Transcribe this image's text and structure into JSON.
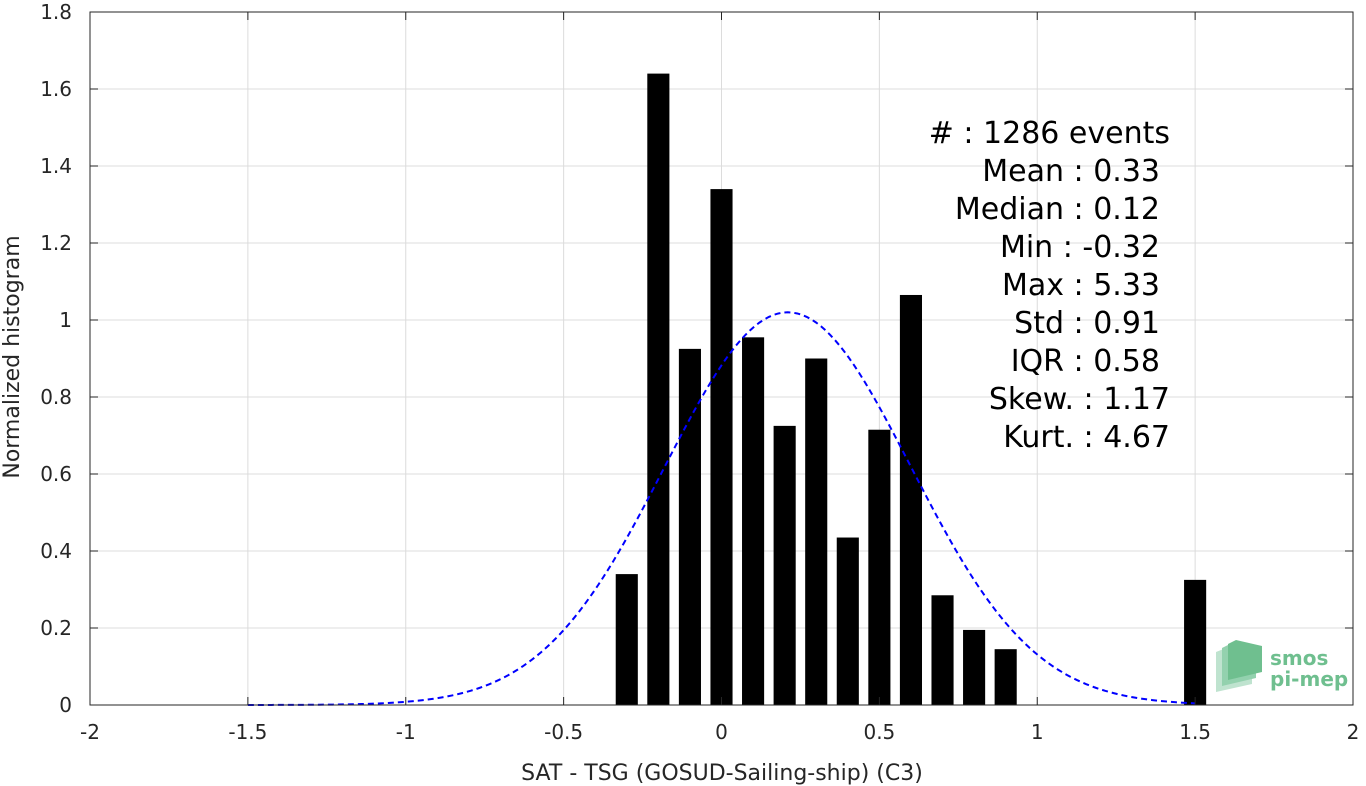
{
  "chart_data": {
    "type": "bar",
    "xlabel": "SAT - TSG (GOSUD-Sailing-ship) (C3)",
    "ylabel": "Normalized histogram",
    "xlim": [
      -2,
      2
    ],
    "ylim": [
      0,
      1.8
    ],
    "xticks": [
      -2,
      -1.5,
      -1,
      -0.5,
      0,
      0.5,
      1,
      1.5,
      2
    ],
    "xtick_labels": [
      "-2",
      "-1.5",
      "-1",
      "-0.5",
      "0",
      "0.5",
      "1",
      "1.5",
      "2"
    ],
    "yticks": [
      0,
      0.2,
      0.4,
      0.6,
      0.8,
      1,
      1.2,
      1.4,
      1.6,
      1.8
    ],
    "ytick_labels": [
      "0",
      "0.2",
      "0.4",
      "0.6",
      "0.8",
      "1",
      "1.2",
      "1.4",
      "1.6",
      "1.8"
    ],
    "grid": true,
    "bar_width": 0.07,
    "bar_color": "#000000",
    "bars": [
      {
        "x": -0.3,
        "y": 0.34
      },
      {
        "x": -0.2,
        "y": 1.64
      },
      {
        "x": -0.1,
        "y": 0.925
      },
      {
        "x": 0.0,
        "y": 1.34
      },
      {
        "x": 0.1,
        "y": 0.955
      },
      {
        "x": 0.2,
        "y": 0.725
      },
      {
        "x": 0.3,
        "y": 0.9
      },
      {
        "x": 0.4,
        "y": 0.435
      },
      {
        "x": 0.5,
        "y": 0.715
      },
      {
        "x": 0.6,
        "y": 1.065
      },
      {
        "x": 0.7,
        "y": 0.285
      },
      {
        "x": 0.8,
        "y": 0.195
      },
      {
        "x": 0.9,
        "y": 0.145
      },
      {
        "x": 1.5,
        "y": 0.325
      }
    ],
    "fit_curve": {
      "style": "dashed",
      "color": "#0000ff",
      "x_range": [
        -1.5,
        1.5
      ],
      "mean": 0.21,
      "std": 0.39,
      "peak": 1.02
    },
    "stats": [
      {
        "label": "#  : 1286 events",
        "anchor": "end-1170"
      },
      {
        "label": "Mean : 0.33",
        "anchor": "end-1160"
      },
      {
        "label": "Median : 0.12",
        "anchor": "end-1160"
      },
      {
        "label": "Min : -0.32",
        "anchor": "end-1160"
      },
      {
        "label": "Max : 5.33",
        "anchor": "end-1160"
      },
      {
        "label": "Std : 0.91",
        "anchor": "end-1160"
      },
      {
        "label": "IQR : 0.58",
        "anchor": "end-1160"
      },
      {
        "label": "Skew. : 1.17",
        "anchor": "end-1170"
      },
      {
        "label": "Kurt. : 4.67",
        "anchor": "end-1170"
      }
    ]
  },
  "logo": {
    "line1": "smos",
    "line2": "pi-mep",
    "color": "#6fbf8f"
  }
}
